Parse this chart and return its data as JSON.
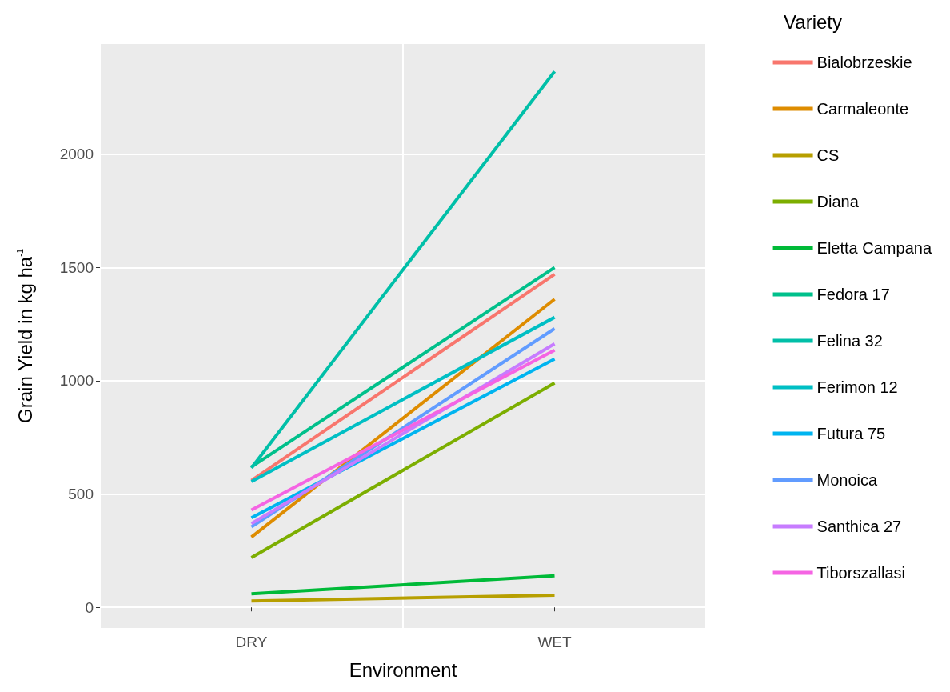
{
  "chart_data": {
    "type": "line",
    "xlabel": "Environment",
    "ylabel": "Grain Yield in kg ha$^{-1}$",
    "legend_title": "Variety",
    "categories": [
      "DRY",
      "WET"
    ],
    "ylim": [
      -91,
      2486
    ],
    "yticks": [
      0,
      500,
      1000,
      1500,
      2000
    ],
    "grid": true,
    "legend": "right",
    "marker": "none",
    "line_style": "solid",
    "series": [
      {
        "name": "Bialobrzeskie",
        "color": "#f8766d",
        "values": [
          560,
          1470
        ]
      },
      {
        "name": "Carmaleonte",
        "color": "#de8c00",
        "values": [
          310,
          1360
        ]
      },
      {
        "name": "CS",
        "color": "#b79f00",
        "values": [
          28,
          54
        ]
      },
      {
        "name": "Diana",
        "color": "#7cae00",
        "values": [
          220,
          990
        ]
      },
      {
        "name": "Eletta Campana",
        "color": "#00ba38",
        "values": [
          60,
          139
        ]
      },
      {
        "name": "Fedora 17",
        "color": "#00c08b",
        "values": [
          620,
          1500
        ]
      },
      {
        "name": "Felina 32",
        "color": "#00bfa8",
        "values": [
          615,
          2365
        ]
      },
      {
        "name": "Ferimon 12",
        "color": "#00bfc4",
        "values": [
          555,
          1280
        ]
      },
      {
        "name": "Futura 75",
        "color": "#00b4f0",
        "values": [
          395,
          1096
        ]
      },
      {
        "name": "Monoica",
        "color": "#619cff",
        "values": [
          355,
          1230
        ]
      },
      {
        "name": "Santhica 27",
        "color": "#c77cff",
        "values": [
          370,
          1163
        ]
      },
      {
        "name": "Tiborszallasi",
        "color": "#f564e3",
        "values": [
          430,
          1135
        ]
      }
    ]
  }
}
